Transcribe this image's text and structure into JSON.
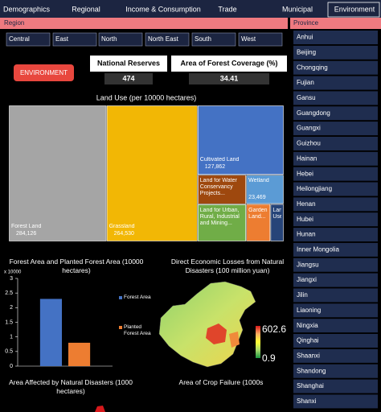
{
  "nav": {
    "tabs": [
      "Demographics",
      "Regional",
      "Income & Consumption",
      "Trade",
      "Municipal",
      "Environment"
    ],
    "active": 5
  },
  "region": {
    "label": "Region",
    "options": [
      "Central",
      "East",
      "North",
      "North East",
      "South",
      "West"
    ]
  },
  "province": {
    "label": "Province",
    "options": [
      "Anhui",
      "Beijing",
      "Chongqing",
      "Fujian",
      "Gansu",
      "Guangdong",
      "Guangxi",
      "Guizhou",
      "Hainan",
      "Hebei",
      "Heilongjiang",
      "Henan",
      "Hubei",
      "Hunan",
      "Inner Mongolia",
      "Jiangsu",
      "Jiangxi",
      "Jilin",
      "Liaoning",
      "Ningxia",
      "Qinghai",
      "Shaanxi",
      "Shandong",
      "Shanghai",
      "Shanxi"
    ]
  },
  "badge": "ENVIRONMENT",
  "kpis": [
    {
      "label": "National Reserves",
      "value": 474
    },
    {
      "label": "Area of Forest Coverage (%)",
      "value": 34.41
    }
  ],
  "chart_data": [
    {
      "type": "treemap",
      "title": "Land Use (per 10000 hectares)",
      "categories": [
        "Forest Land",
        "Grassland",
        "Cultivated Land",
        "Land for Water Conservancy Projects...",
        "Land for Urban, Rural, Industrial and Mining...",
        "Wetland",
        "Garden Land...",
        "Land Used..."
      ],
      "values": [
        284126,
        264530,
        127862,
        30600,
        38500,
        23469,
        19400,
        10700
      ],
      "value_labels": [
        "284,126",
        "264,530",
        "127,862",
        null,
        null,
        "23,469",
        null,
        null
      ],
      "colors": [
        "#a5a5a5",
        "#f2b705",
        "#4472c4",
        "#9e480e",
        "#70ad47",
        "#5b9bd5",
        "#ed7d31",
        "#264478"
      ]
    },
    {
      "type": "bar",
      "title": "Forest Area and Planted Forest Area (10000 hectares)",
      "ylabel": "x 10000",
      "categories": [
        null
      ],
      "series": [
        {
          "name": "Forest Area",
          "color": "#4472c4",
          "values": [
            2.3
          ]
        },
        {
          "name": "Planted Forest Area",
          "color": "#ed7d31",
          "values": [
            0.8
          ]
        }
      ],
      "ylim": [
        0,
        3
      ],
      "yticks": [
        0,
        0.5,
        1,
        1.5,
        2,
        2.5,
        3
      ],
      "grid": false
    },
    {
      "type": "map",
      "title": "Direct Economic Losses from Natural Disasters (100 million yuan)",
      "colorbar": {
        "max": 602.6,
        "min": 0.9,
        "colors": [
          "#d7191c",
          "#fdae61",
          "#ffff33",
          "#a6d96a",
          "#1a9641"
        ]
      }
    },
    {
      "type": "map",
      "title": "Area Affected by Natural Disasters (1000 hectares)"
    },
    {
      "type": "map",
      "title": "Area of Crop Failure (1000s"
    }
  ]
}
